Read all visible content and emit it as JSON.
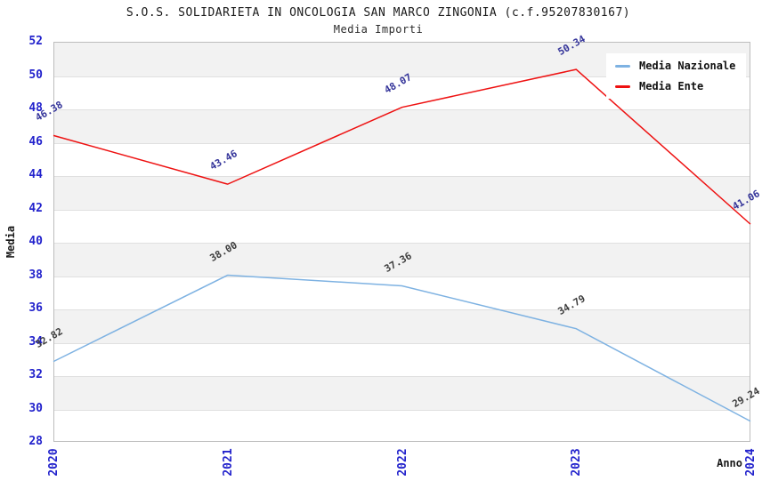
{
  "title": "S.O.S. SOLIDARIETA IN ONCOLOGIA SAN MARCO ZINGONIA (c.f.95207830167)",
  "subtitle": "Media Importi",
  "chart_data": {
    "type": "line",
    "x": [
      "2020",
      "2021",
      "2022",
      "2023",
      "2024"
    ],
    "series": [
      {
        "name": "Media Nazionale",
        "values": [
          32.82,
          38.0,
          37.36,
          34.79,
          29.24
        ],
        "point_labels": [
          "32.82",
          "38.00",
          "37.36",
          "34.79",
          "29.24"
        ],
        "line_color": "#7EB2E2",
        "point_label_color": "#3d3d3d"
      },
      {
        "name": "Media Ente",
        "values": [
          46.38,
          43.46,
          48.07,
          50.34,
          41.06
        ],
        "point_labels": [
          "46.38",
          "43.46",
          "48.07",
          "50.34",
          "41.06"
        ],
        "line_color": "#EE1111",
        "point_label_color": "#333399"
      }
    ],
    "xlabel": "Anno",
    "ylabel": "Media",
    "ylim": [
      28,
      52
    ],
    "ytick_step": 2,
    "yticks": [
      28,
      30,
      32,
      34,
      36,
      38,
      40,
      42,
      44,
      46,
      48,
      50,
      52
    ],
    "grid": "horizontal-alternating-bands",
    "legend_position": "top-right"
  },
  "colors": {
    "tick_label": "#2222cc",
    "band_gray": "#f2f2f2",
    "band_white": "#ffffff",
    "plot_border": "#bdbdbd",
    "title_text": "#1a1a1a"
  }
}
